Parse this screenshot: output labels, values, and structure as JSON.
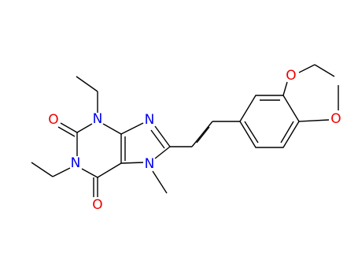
{
  "atoms": [
    {
      "label": "O"
    },
    {
      "label": "N"
    },
    {
      "label": "N"
    },
    {
      "label": "O"
    },
    {
      "label": "N"
    },
    {
      "label": "N"
    },
    {
      "label": "O"
    },
    {
      "label": "O"
    }
  ]
}
